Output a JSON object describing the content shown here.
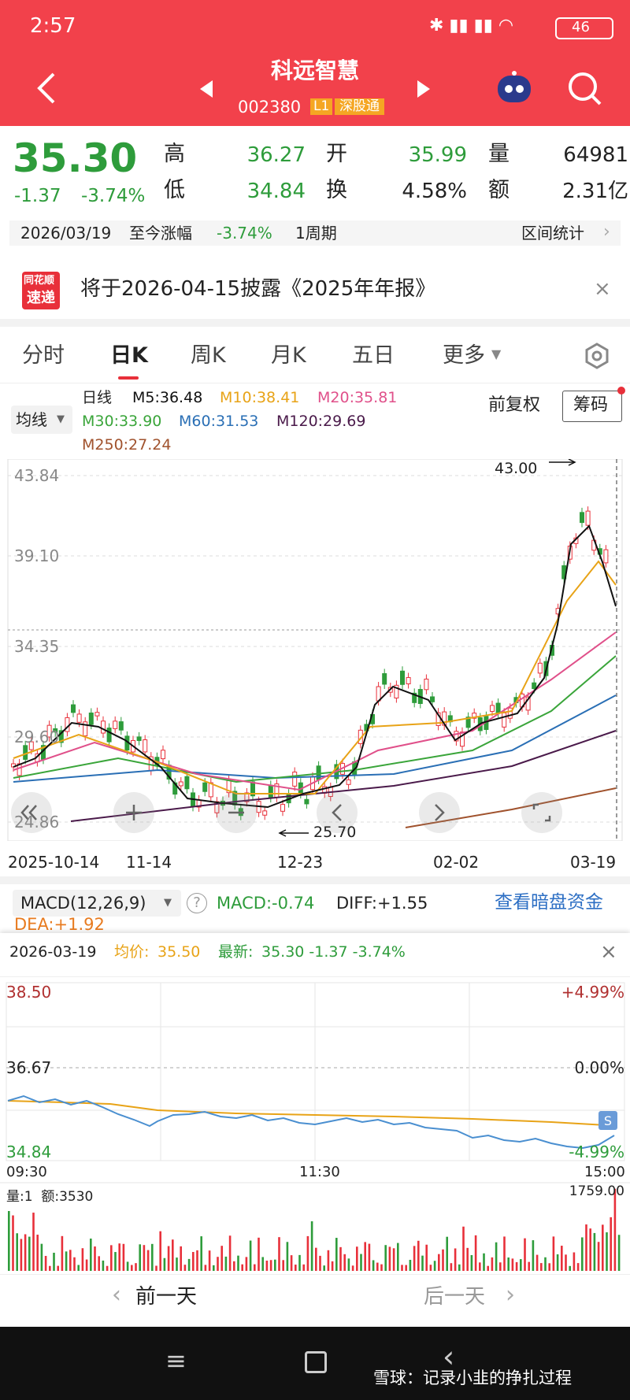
{
  "status": {
    "time": "2:57",
    "battery": "46"
  },
  "header": {
    "title": "科远智慧",
    "code": "002380",
    "badge1": "L1",
    "badge2": "深股通"
  },
  "quote": {
    "price": "35.30",
    "change": "-1.37",
    "pct": "-3.74%",
    "stats": [
      {
        "label": "高",
        "value": "36.27"
      },
      {
        "label": "开",
        "value": "35.99"
      },
      {
        "label": "量",
        "value": "64981"
      },
      {
        "label": "低",
        "value": "34.84"
      },
      {
        "label": "换",
        "value": "4.58%"
      },
      {
        "label": "额",
        "value": "2.31亿"
      }
    ]
  },
  "range": {
    "date": "2026/03/19",
    "label": "至今涨幅",
    "value": "-3.74%",
    "period": "1周期",
    "stats": "区间统计"
  },
  "notice": {
    "logo_top": "同花顺",
    "logo_bottom": "速递",
    "text": "将于2026-04-15披露《2025年年报》"
  },
  "tabs": [
    "分时",
    "日K",
    "周K",
    "月K",
    "五日",
    "更多"
  ],
  "ma": {
    "selector": "均线",
    "line": "日线",
    "items": [
      "M5:36.48",
      "M10:38.41",
      "M20:35.81",
      "M30:33.90",
      "M60:31.53",
      "M120:29.69",
      "M250:27.24"
    ],
    "adjust": "前复权",
    "chips": "筹码"
  },
  "kline": {
    "yticks": [
      "43.84",
      "39.10",
      "34.35",
      "29.60",
      "24.86"
    ],
    "high": "43.00",
    "low": "25.70",
    "xticks": [
      "2025-10-14",
      "11-14",
      "12-23",
      "02-02",
      "03-19"
    ]
  },
  "macd": {
    "name": "MACD(12,26,9)",
    "macd": "MACD:-0.74",
    "diff": "DIFF:+1.55",
    "dea": "DEA:+1.92",
    "link": "查看暗盘资金"
  },
  "intraday": {
    "date": "2026-03-19",
    "avg_label": "均价:",
    "avg": "35.50",
    "latest_label": "最新:",
    "latest": "35.30 -1.37 -3.74%",
    "left_ticks": [
      "38.50",
      "36.67",
      "34.84"
    ],
    "right_ticks": [
      "+4.99%",
      "0.00%",
      "-4.99%"
    ],
    "times": [
      "09:30",
      "11:30",
      "15:00"
    ],
    "volume": "量:1  额:3530",
    "volume_max": "1759.00"
  },
  "footer": {
    "prev": "前一天",
    "next": "后一天"
  },
  "watermark": "雪球：记录小韭的挣扎过程"
}
